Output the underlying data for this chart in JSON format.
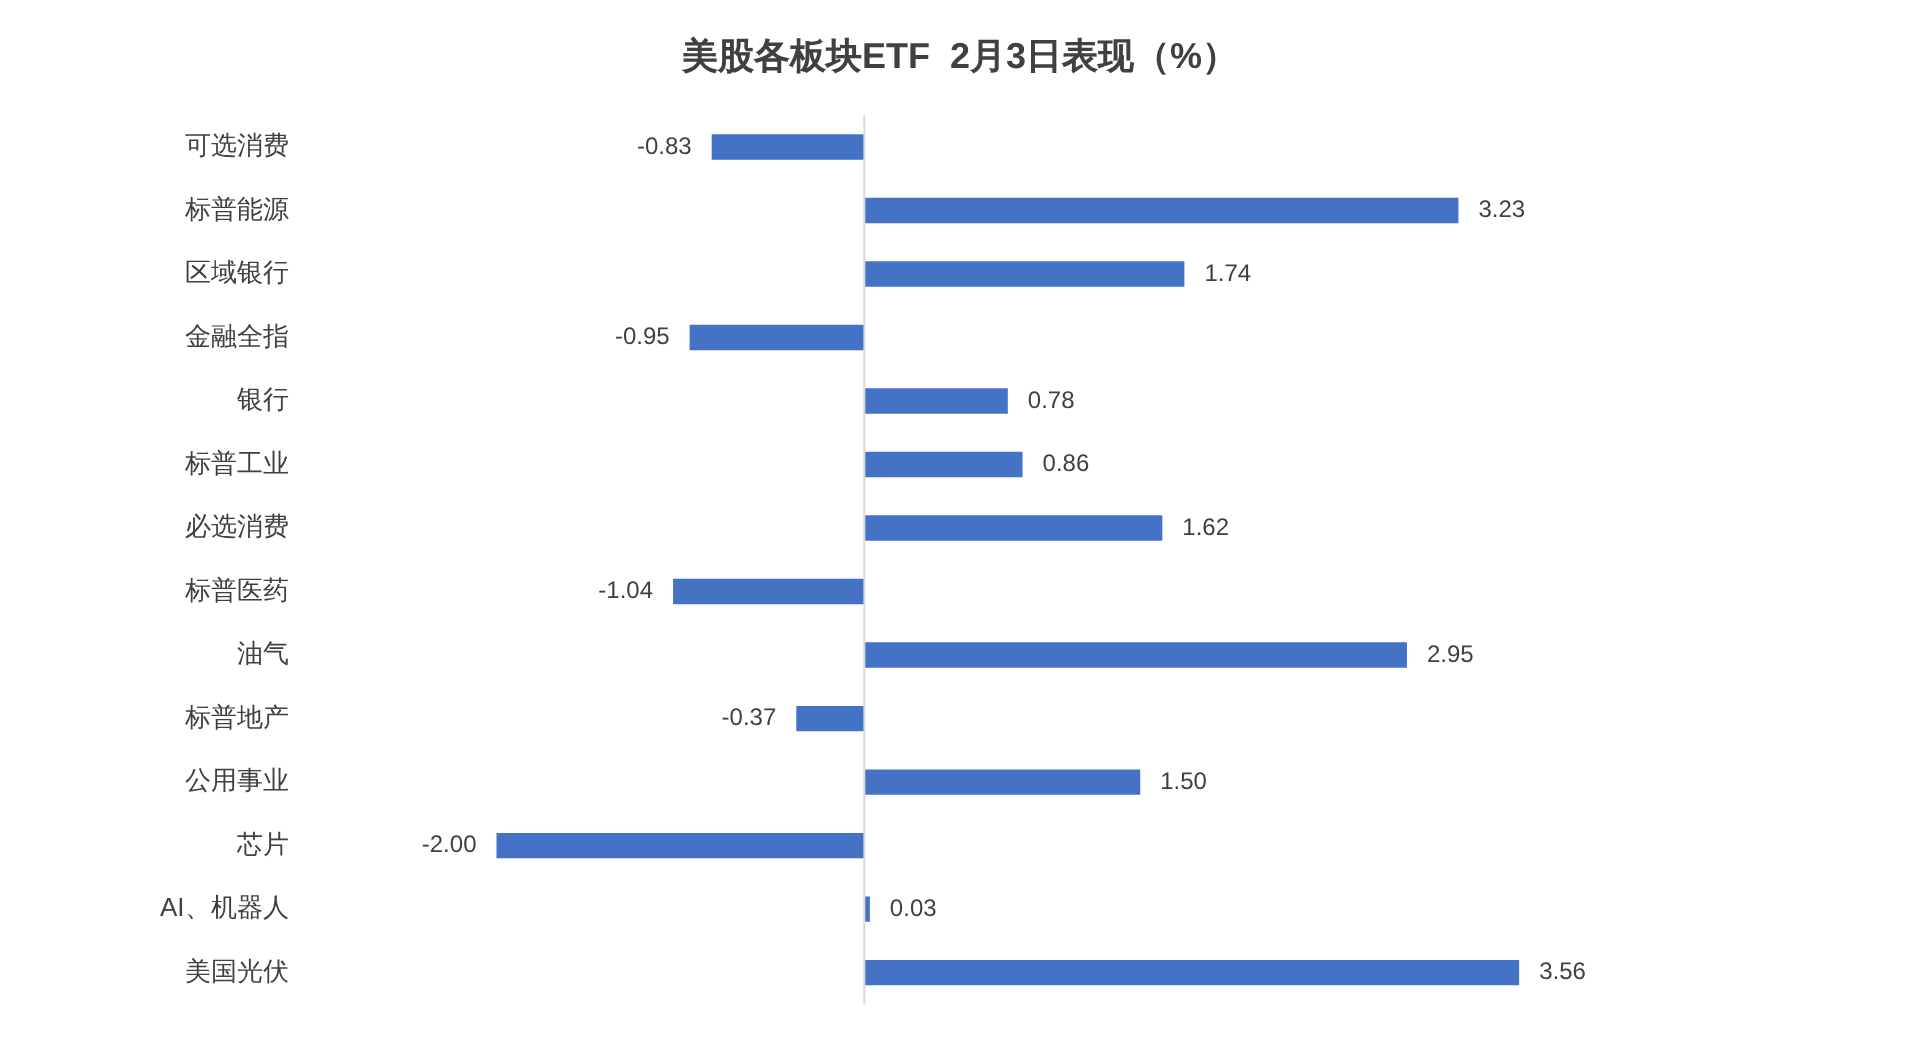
{
  "chart_data": {
    "type": "bar",
    "orientation": "horizontal",
    "title": "美股各板块ETF  2月3日表现（%）",
    "categories": [
      "可选消费",
      "标普能源",
      "区域银行",
      "金融全指",
      "银行",
      "标普工业",
      "必选消费",
      "标普医药",
      "油气",
      "标普地产",
      "公用事业",
      "芯片",
      "AI、机器人",
      "美国光伏"
    ],
    "values": [
      -0.83,
      3.23,
      1.74,
      -0.95,
      0.78,
      0.86,
      1.62,
      -1.04,
      2.95,
      -0.37,
      1.5,
      -2,
      0.03,
      3.56
    ],
    "value_labels": [
      "-0.83",
      "3.23",
      "1.74",
      "-0.95",
      "0.78",
      "0.86",
      "1.62",
      "-1.04",
      "2.95",
      "-0.37",
      "1.50",
      "-2.00",
      "0.03",
      "3.56"
    ],
    "color": "#4472c4",
    "tick_labels": "y",
    "grid": false,
    "legend": false
  }
}
